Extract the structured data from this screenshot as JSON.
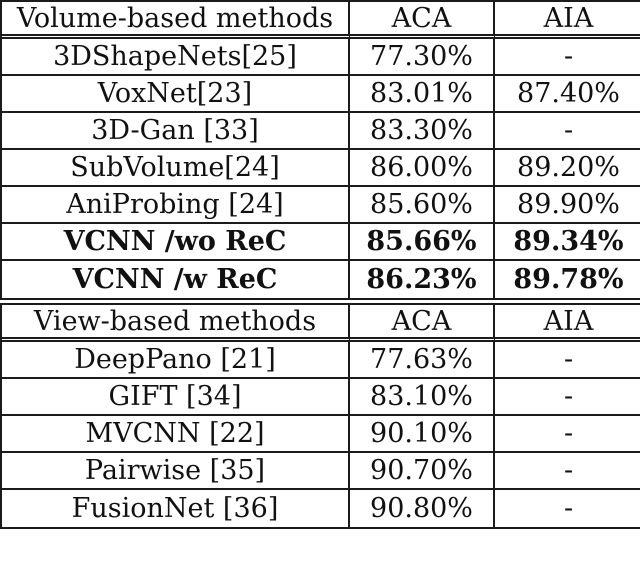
{
  "accent_colors": {
    "border": "#1b1b1b",
    "text": "#111111",
    "background": "#ffffff"
  },
  "chart_data": {
    "type": "table",
    "sections": [
      {
        "header": [
          "Volume-based methods",
          "ACA",
          "AIA"
        ],
        "rows": [
          [
            "3DShapeNets[25]",
            "77.30%",
            "-"
          ],
          [
            "VoxNet[23]",
            "83.01%",
            "87.40%"
          ],
          [
            "3D-Gan [33]",
            "83.30%",
            "-"
          ],
          [
            "SubVolume[24]",
            "86.00%",
            "89.20%"
          ],
          [
            "AniProbing [24]",
            "85.60%",
            "89.90%"
          ],
          [
            "VCNN /wo ReC",
            "85.66%",
            "89.34%"
          ],
          [
            "VCNN /w ReC",
            "86.23%",
            "89.78%"
          ]
        ],
        "bold_rows": [
          5,
          6
        ]
      },
      {
        "header": [
          "View-based methods",
          "ACA",
          "AIA"
        ],
        "rows": [
          [
            "DeepPano [21]",
            "77.63%",
            "-"
          ],
          [
            "GIFT [34]",
            "83.10%",
            "-"
          ],
          [
            "MVCNN [22]",
            "90.10%",
            "-"
          ],
          [
            "Pairwise [35]",
            "90.70%",
            "-"
          ],
          [
            "FusionNet [36]",
            "90.80%",
            "-"
          ]
        ],
        "bold_rows": []
      }
    ]
  },
  "table1": {
    "header": {
      "method": "Volume-based methods",
      "aca": "ACA",
      "aia": "AIA"
    },
    "rows": [
      {
        "method": "3DShapeNets[25]",
        "aca": "77.30%",
        "aia": "-"
      },
      {
        "method": "VoxNet[23]",
        "aca": "83.01%",
        "aia": "87.40%"
      },
      {
        "method": "3D-Gan [33]",
        "aca": "83.30%",
        "aia": "-"
      },
      {
        "method": "SubVolume[24]",
        "aca": "86.00%",
        "aia": "89.20%"
      },
      {
        "method": "AniProbing [24]",
        "aca": "85.60%",
        "aia": "89.90%"
      },
      {
        "method": "VCNN /wo ReC",
        "aca": "85.66%",
        "aia": "89.34%"
      },
      {
        "method": "VCNN /w ReC",
        "aca": "86.23%",
        "aia": "89.78%"
      }
    ]
  },
  "table2": {
    "header": {
      "method": "View-based methods",
      "aca": "ACA",
      "aia": "AIA"
    },
    "rows": [
      {
        "method": "DeepPano [21]",
        "aca": "77.63%",
        "aia": "-"
      },
      {
        "method": "GIFT [34]",
        "aca": "83.10%",
        "aia": "-"
      },
      {
        "method": "MVCNN [22]",
        "aca": "90.10%",
        "aia": "-"
      },
      {
        "method": "Pairwise [35]",
        "aca": "90.70%",
        "aia": "-"
      },
      {
        "method": "FusionNet [36]",
        "aca": "90.80%",
        "aia": "-"
      }
    ]
  }
}
